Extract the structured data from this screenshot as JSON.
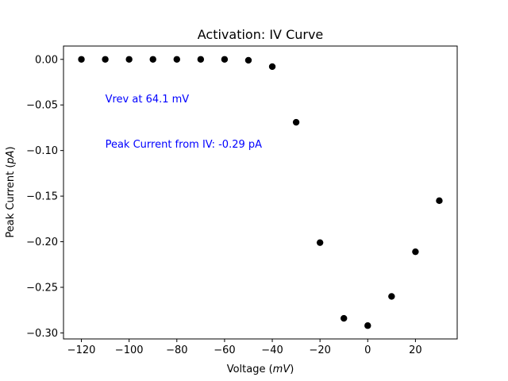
{
  "chart_data": {
    "type": "scatter",
    "title": "Activation: IV Curve",
    "xlabel_prefix": "Voltage (",
    "xlabel_unit": "mV",
    "xlabel_suffix": ")",
    "ylabel_prefix": "Peak Current (",
    "ylabel_unit": "pA",
    "ylabel_suffix": ")",
    "xlim": [
      -127.5,
      37.5
    ],
    "ylim": [
      -0.3066,
      0.0146
    ],
    "xticks": [
      -120,
      -100,
      -80,
      -60,
      -40,
      -20,
      0,
      20
    ],
    "xtick_labels": [
      "−120",
      "−100",
      "−80",
      "−60",
      "−40",
      "−20",
      "0",
      "20"
    ],
    "yticks": [
      0.0,
      -0.05,
      -0.1,
      -0.15,
      -0.2,
      -0.25,
      -0.3
    ],
    "ytick_labels": [
      "0.00",
      "−0.05",
      "−0.10",
      "−0.15",
      "−0.20",
      "−0.25",
      "−0.30"
    ],
    "grid": false,
    "marker_color": "#000000",
    "x": [
      -120,
      -110,
      -100,
      -90,
      -80,
      -70,
      -60,
      -50,
      -40,
      -30,
      -20,
      -10,
      0,
      10,
      20,
      30
    ],
    "y": [
      0.0,
      0.0,
      0.0,
      0.0,
      0.0,
      0.0,
      0.0,
      -0.001,
      -0.008,
      -0.069,
      -0.201,
      -0.284,
      -0.292,
      -0.26,
      -0.211,
      -0.155
    ],
    "annotations": [
      {
        "text": "Vrev at 64.1 mV",
        "x": -110,
        "y": -0.047,
        "color": "#0000ff"
      },
      {
        "text": "Peak Current from IV: -0.29 pA",
        "x": -110,
        "y": -0.097,
        "color": "#0000ff"
      }
    ]
  }
}
